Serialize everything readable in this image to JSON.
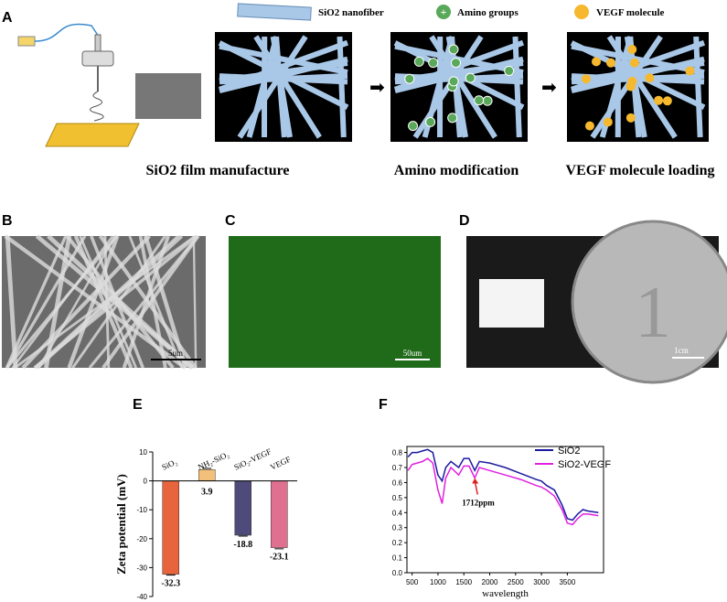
{
  "panel_a": {
    "label": "A",
    "legend": [
      "SiO2 nanofiber",
      "Amino groups",
      "VEGF molecule"
    ],
    "steps": [
      "SiO2 film manufacture",
      "Amino modification",
      "VEGF molecule loading"
    ]
  },
  "panel_b": {
    "label": "B",
    "scale": "5um"
  },
  "panel_c": {
    "label": "C",
    "scale": "50um"
  },
  "panel_d": {
    "label": "D",
    "scale": "1cm"
  },
  "chart_data": [
    {
      "type": "bar",
      "label": "E",
      "ylabel": "Zeta potential (mV)",
      "categories": [
        "SiO₂",
        "NH₂-SiO₂",
        "SiO₂-VEGF",
        "VEGF"
      ],
      "values": [
        -32.3,
        3.9,
        -18.8,
        -23.1
      ],
      "errors": [
        0.3,
        0.4,
        0.3,
        0.4
      ],
      "colors": [
        "#e8643c",
        "#f3c07a",
        "#4e4a7a",
        "#e07090"
      ],
      "ylim": [
        -40,
        10
      ],
      "yticks": [
        -40,
        -30,
        -20,
        -10,
        0,
        10
      ]
    },
    {
      "type": "line",
      "label": "F",
      "xlabel": "wavelength",
      "x": [
        420,
        500,
        600,
        700,
        800,
        900,
        1000,
        1080,
        1150,
        1250,
        1400,
        1500,
        1600,
        1712,
        1800,
        2000,
        2300,
        2600,
        2900,
        3000,
        3100,
        3250,
        3400,
        3500,
        3600,
        3700,
        3800,
        3900,
        4100
      ],
      "series": [
        {
          "name": "SiO2",
          "color": "#1a1aa0",
          "values": [
            0.77,
            0.8,
            0.8,
            0.81,
            0.82,
            0.8,
            0.65,
            0.61,
            0.7,
            0.74,
            0.7,
            0.76,
            0.76,
            0.68,
            0.74,
            0.73,
            0.7,
            0.66,
            0.62,
            0.61,
            0.58,
            0.55,
            0.45,
            0.36,
            0.35,
            0.39,
            0.42,
            0.41,
            0.4
          ]
        },
        {
          "name": "SiO2-VEGF",
          "color": "#e020e0",
          "values": [
            0.68,
            0.72,
            0.73,
            0.74,
            0.76,
            0.73,
            0.55,
            0.46,
            0.63,
            0.7,
            0.65,
            0.71,
            0.71,
            0.63,
            0.7,
            0.68,
            0.65,
            0.62,
            0.58,
            0.57,
            0.55,
            0.51,
            0.42,
            0.33,
            0.32,
            0.36,
            0.39,
            0.39,
            0.38
          ]
        }
      ],
      "annotations": [
        {
          "text": "1712ppm",
          "x": 1712,
          "y": 0.63
        }
      ],
      "legend": "upper right",
      "xlim": [
        400,
        4200
      ],
      "xticks": [
        500,
        1000,
        1500,
        2000,
        2500,
        3000,
        3500
      ],
      "ylim": [
        0,
        0.84
      ],
      "yticks": [
        {
          "value": 0,
          "label": "0.0"
        },
        0.1,
        0.2,
        0.3,
        0.4,
        0.5,
        0.6,
        0.7,
        0.8
      ]
    }
  ]
}
